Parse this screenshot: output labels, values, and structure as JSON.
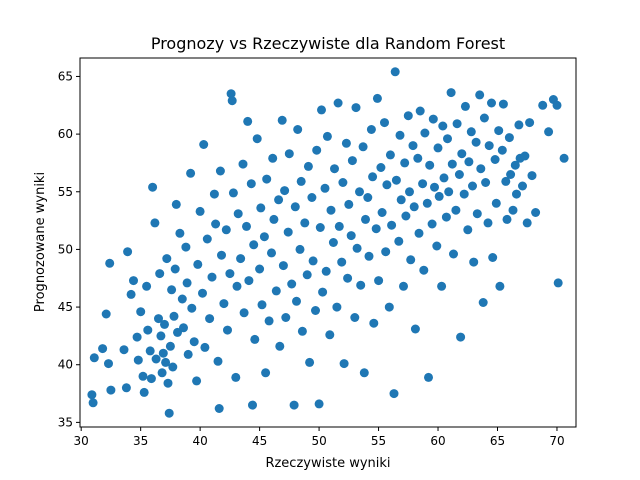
{
  "chart_data": {
    "type": "scatter",
    "title": "Prognozy vs Rzeczywiste dla Random Forest",
    "xlabel": "Rzeczywiste wyniki",
    "ylabel": "Prognozowane wyniki",
    "xlim": [
      29.9,
      71.6
    ],
    "ylim": [
      34.6,
      66.6
    ],
    "xticks": [
      30,
      35,
      40,
      45,
      50,
      55,
      60,
      65,
      70
    ],
    "yticks": [
      35,
      40,
      45,
      50,
      55,
      60,
      65
    ],
    "grid": false,
    "marker_color": "#1f77b4",
    "points": [
      [
        30.9,
        37.4
      ],
      [
        31.0,
        36.7
      ],
      [
        31.1,
        40.6
      ],
      [
        31.8,
        41.4
      ],
      [
        32.1,
        44.4
      ],
      [
        32.3,
        40.1
      ],
      [
        32.4,
        48.8
      ],
      [
        32.5,
        37.8
      ],
      [
        33.6,
        41.3
      ],
      [
        33.8,
        38.0
      ],
      [
        33.9,
        49.8
      ],
      [
        34.2,
        46.1
      ],
      [
        34.4,
        47.3
      ],
      [
        34.7,
        42.4
      ],
      [
        34.8,
        40.4
      ],
      [
        35.0,
        44.6
      ],
      [
        35.2,
        39.0
      ],
      [
        35.3,
        37.6
      ],
      [
        35.5,
        46.8
      ],
      [
        35.6,
        43.0
      ],
      [
        35.8,
        41.2
      ],
      [
        35.9,
        38.8
      ],
      [
        36.0,
        55.4
      ],
      [
        36.2,
        52.3
      ],
      [
        36.3,
        40.5
      ],
      [
        36.5,
        44.0
      ],
      [
        36.6,
        47.9
      ],
      [
        36.7,
        42.5
      ],
      [
        36.8,
        39.3
      ],
      [
        36.9,
        41.0
      ],
      [
        37.0,
        43.5
      ],
      [
        37.1,
        40.2
      ],
      [
        37.2,
        49.2
      ],
      [
        37.3,
        38.4
      ],
      [
        37.4,
        35.8
      ],
      [
        37.5,
        41.6
      ],
      [
        37.6,
        46.5
      ],
      [
        37.7,
        39.8
      ],
      [
        37.8,
        44.2
      ],
      [
        37.9,
        48.3
      ],
      [
        38.0,
        53.9
      ],
      [
        38.1,
        42.8
      ],
      [
        38.3,
        51.4
      ],
      [
        38.5,
        45.7
      ],
      [
        38.6,
        43.2
      ],
      [
        38.8,
        50.2
      ],
      [
        38.9,
        47.1
      ],
      [
        39.0,
        40.9
      ],
      [
        39.2,
        56.6
      ],
      [
        39.3,
        44.9
      ],
      [
        39.5,
        42.0
      ],
      [
        39.7,
        38.6
      ],
      [
        39.8,
        48.7
      ],
      [
        40.0,
        53.3
      ],
      [
        40.2,
        46.2
      ],
      [
        40.3,
        59.1
      ],
      [
        40.4,
        41.5
      ],
      [
        40.6,
        50.9
      ],
      [
        40.8,
        44.0
      ],
      [
        41.0,
        47.6
      ],
      [
        41.2,
        54.8
      ],
      [
        41.3,
        52.2
      ],
      [
        41.5,
        40.3
      ],
      [
        41.6,
        36.2
      ],
      [
        41.7,
        56.8
      ],
      [
        41.8,
        49.5
      ],
      [
        42.0,
        45.3
      ],
      [
        42.2,
        51.7
      ],
      [
        42.3,
        43.0
      ],
      [
        42.5,
        47.9
      ],
      [
        42.6,
        63.5
      ],
      [
        42.7,
        62.9
      ],
      [
        42.8,
        54.9
      ],
      [
        43.0,
        38.9
      ],
      [
        43.1,
        46.8
      ],
      [
        43.2,
        53.1
      ],
      [
        43.4,
        49.2
      ],
      [
        43.6,
        57.4
      ],
      [
        43.7,
        44.5
      ],
      [
        43.9,
        52.0
      ],
      [
        44.0,
        61.1
      ],
      [
        44.1,
        47.3
      ],
      [
        44.3,
        55.7
      ],
      [
        44.4,
        36.5
      ],
      [
        44.5,
        50.4
      ],
      [
        44.6,
        42.2
      ],
      [
        44.8,
        59.6
      ],
      [
        45.0,
        48.3
      ],
      [
        45.1,
        53.6
      ],
      [
        45.2,
        45.2
      ],
      [
        45.4,
        51.1
      ],
      [
        45.5,
        39.3
      ],
      [
        45.6,
        56.1
      ],
      [
        45.8,
        43.8
      ],
      [
        46.0,
        49.7
      ],
      [
        46.1,
        57.9
      ],
      [
        46.2,
        52.6
      ],
      [
        46.4,
        46.4
      ],
      [
        46.6,
        54.3
      ],
      [
        46.7,
        41.6
      ],
      [
        46.9,
        61.2
      ],
      [
        47.0,
        48.6
      ],
      [
        47.1,
        55.1
      ],
      [
        47.2,
        44.1
      ],
      [
        47.4,
        51.5
      ],
      [
        47.5,
        58.3
      ],
      [
        47.7,
        47.0
      ],
      [
        47.9,
        36.5
      ],
      [
        48.0,
        53.7
      ],
      [
        48.1,
        45.5
      ],
      [
        48.2,
        60.4
      ],
      [
        48.4,
        50.0
      ],
      [
        48.5,
        55.9
      ],
      [
        48.6,
        42.9
      ],
      [
        48.8,
        52.3
      ],
      [
        49.0,
        47.8
      ],
      [
        49.1,
        57.2
      ],
      [
        49.2,
        40.2
      ],
      [
        49.4,
        54.5
      ],
      [
        49.5,
        49.0
      ],
      [
        49.7,
        44.7
      ],
      [
        49.8,
        58.6
      ],
      [
        50.0,
        36.6
      ],
      [
        50.1,
        51.9
      ],
      [
        50.2,
        62.1
      ],
      [
        50.3,
        46.3
      ],
      [
        50.5,
        55.3
      ],
      [
        50.6,
        48.1
      ],
      [
        50.7,
        59.8
      ],
      [
        50.9,
        42.6
      ],
      [
        51.0,
        53.4
      ],
      [
        51.2,
        50.6
      ],
      [
        51.3,
        57.0
      ],
      [
        51.5,
        45.0
      ],
      [
        51.6,
        62.7
      ],
      [
        51.7,
        52.0
      ],
      [
        51.9,
        48.9
      ],
      [
        52.0,
        55.8
      ],
      [
        52.1,
        40.1
      ],
      [
        52.3,
        59.2
      ],
      [
        52.4,
        47.5
      ],
      [
        52.5,
        53.9
      ],
      [
        52.7,
        51.2
      ],
      [
        52.8,
        57.7
      ],
      [
        53.0,
        44.1
      ],
      [
        53.1,
        62.3
      ],
      [
        53.2,
        50.1
      ],
      [
        53.4,
        55.0
      ],
      [
        53.5,
        46.9
      ],
      [
        53.7,
        58.9
      ],
      [
        53.8,
        39.3
      ],
      [
        53.9,
        52.6
      ],
      [
        54.1,
        54.5
      ],
      [
        54.2,
        49.4
      ],
      [
        54.4,
        60.4
      ],
      [
        54.5,
        56.3
      ],
      [
        54.6,
        43.6
      ],
      [
        54.8,
        51.8
      ],
      [
        54.9,
        63.1
      ],
      [
        55.0,
        47.3
      ],
      [
        55.2,
        57.1
      ],
      [
        55.3,
        53.2
      ],
      [
        55.5,
        61.0
      ],
      [
        55.6,
        49.8
      ],
      [
        55.7,
        55.6
      ],
      [
        55.9,
        45.0
      ],
      [
        56.0,
        58.2
      ],
      [
        56.1,
        52.1
      ],
      [
        56.3,
        37.5
      ],
      [
        56.4,
        65.4
      ],
      [
        56.5,
        56.0
      ],
      [
        56.7,
        50.7
      ],
      [
        56.8,
        59.9
      ],
      [
        56.9,
        54.3
      ],
      [
        57.1,
        46.8
      ],
      [
        57.2,
        57.5
      ],
      [
        57.3,
        52.9
      ],
      [
        57.5,
        61.6
      ],
      [
        57.6,
        55.0
      ],
      [
        57.7,
        49.1
      ],
      [
        57.9,
        59.0
      ],
      [
        58.0,
        53.7
      ],
      [
        58.1,
        43.1
      ],
      [
        58.3,
        57.9
      ],
      [
        58.4,
        51.4
      ],
      [
        58.5,
        62.0
      ],
      [
        58.7,
        55.7
      ],
      [
        58.8,
        48.2
      ],
      [
        58.9,
        60.1
      ],
      [
        59.1,
        54.0
      ],
      [
        59.2,
        38.9
      ],
      [
        59.3,
        57.3
      ],
      [
        59.5,
        52.2
      ],
      [
        59.6,
        61.3
      ],
      [
        59.7,
        55.4
      ],
      [
        59.9,
        50.3
      ],
      [
        60.0,
        58.8
      ],
      [
        60.1,
        54.6
      ],
      [
        60.3,
        46.8
      ],
      [
        60.4,
        60.7
      ],
      [
        60.5,
        56.2
      ],
      [
        60.7,
        52.8
      ],
      [
        60.8,
        59.6
      ],
      [
        60.9,
        55.0
      ],
      [
        61.1,
        63.6
      ],
      [
        61.2,
        57.4
      ],
      [
        61.3,
        49.6
      ],
      [
        61.5,
        53.4
      ],
      [
        61.6,
        60.9
      ],
      [
        61.8,
        56.5
      ],
      [
        61.9,
        42.4
      ],
      [
        62.0,
        58.3
      ],
      [
        62.2,
        54.8
      ],
      [
        62.3,
        62.4
      ],
      [
        62.5,
        51.7
      ],
      [
        62.6,
        57.6
      ],
      [
        62.8,
        60.2
      ],
      [
        62.9,
        55.5
      ],
      [
        63.0,
        48.9
      ],
      [
        63.2,
        59.3
      ],
      [
        63.3,
        53.1
      ],
      [
        63.5,
        63.4
      ],
      [
        63.6,
        57.0
      ],
      [
        63.8,
        45.4
      ],
      [
        63.9,
        61.4
      ],
      [
        64.0,
        55.8
      ],
      [
        64.2,
        52.3
      ],
      [
        64.3,
        59.0
      ],
      [
        64.5,
        62.7
      ],
      [
        64.6,
        49.3
      ],
      [
        64.8,
        57.8
      ],
      [
        64.9,
        54.0
      ],
      [
        65.1,
        60.3
      ],
      [
        65.2,
        46.8
      ],
      [
        65.4,
        58.6
      ],
      [
        65.5,
        62.6
      ],
      [
        65.7,
        55.9
      ],
      [
        65.8,
        52.6
      ],
      [
        66.0,
        59.7
      ],
      [
        66.1,
        56.5
      ],
      [
        66.3,
        53.4
      ],
      [
        66.5,
        57.3
      ],
      [
        66.6,
        54.8
      ],
      [
        66.8,
        60.8
      ],
      [
        66.9,
        57.9
      ],
      [
        67.1,
        55.5
      ],
      [
        67.3,
        58.1
      ],
      [
        67.5,
        52.3
      ],
      [
        67.7,
        61.0
      ],
      [
        67.9,
        56.4
      ],
      [
        68.2,
        53.2
      ],
      [
        68.8,
        62.5
      ],
      [
        69.3,
        60.2
      ],
      [
        69.7,
        63.0
      ],
      [
        70.0,
        62.5
      ],
      [
        70.1,
        47.1
      ],
      [
        70.6,
        57.9
      ]
    ]
  }
}
